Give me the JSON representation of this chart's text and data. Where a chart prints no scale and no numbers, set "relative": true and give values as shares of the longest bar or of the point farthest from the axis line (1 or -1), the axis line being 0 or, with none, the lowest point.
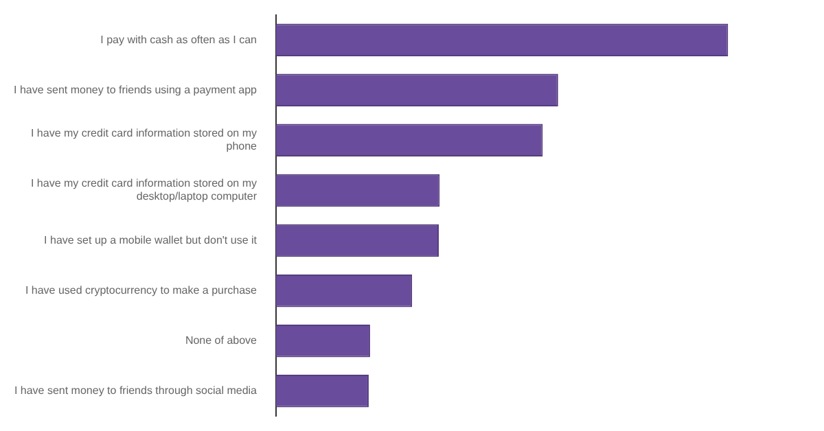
{
  "chart_data": {
    "type": "bar",
    "orientation": "horizontal",
    "relative": true,
    "grid": false,
    "legend": false,
    "tick_labels": "y",
    "categories": [
      "I pay with cash as often as I can",
      "I have sent money to friends using a payment app",
      "I have my credit card information stored on my phone",
      "I have my credit card information stored on my desktop/laptop computer",
      "I have set up a mobile wallet but don't use it",
      "I have used cryptocurrency to make a purchase",
      "None of above",
      "I have sent money to friends through social media"
    ],
    "values": [
      1,
      0.624,
      0.59,
      0.362,
      0.36,
      0.301,
      0.208,
      0.205
    ],
    "color": "#6a4c9c"
  }
}
